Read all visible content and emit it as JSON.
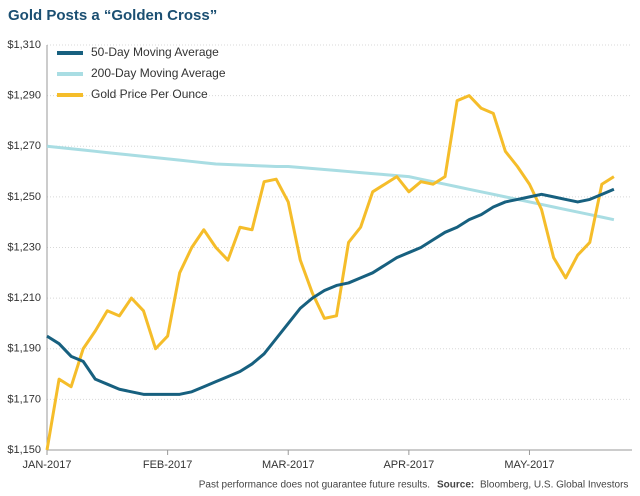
{
  "chart_data": {
    "type": "line",
    "title": "Gold Posts a “Golden Cross”",
    "categories": [
      "JAN-2017",
      null,
      null,
      null,
      null,
      null,
      null,
      null,
      null,
      null,
      "FEB-2017",
      null,
      null,
      null,
      null,
      null,
      null,
      null,
      null,
      null,
      "MAR-2017",
      null,
      null,
      null,
      null,
      null,
      null,
      null,
      null,
      null,
      "APR-2017",
      null,
      null,
      null,
      null,
      null,
      null,
      null,
      null,
      null,
      "MAY-2017",
      null,
      null,
      null,
      null,
      null,
      null,
      null
    ],
    "series": [
      {
        "name": "50-Day Moving Average",
        "color": "#17607f",
        "values": [
          1195,
          1192,
          1187,
          1185,
          1178,
          1176,
          1174,
          1173,
          1172,
          1172,
          1172,
          1172,
          1173,
          1175,
          1177,
          1179,
          1181,
          1184,
          1188,
          1194,
          1200,
          1206,
          1210,
          1213,
          1215,
          1216,
          1218,
          1220,
          1223,
          1226,
          1228,
          1230,
          1233,
          1236,
          1238,
          1241,
          1243,
          1246,
          1248,
          1249,
          1250,
          1251,
          1250,
          1249,
          1248,
          1249,
          1251,
          1253
        ]
      },
      {
        "name": "200-Day Moving Average",
        "color": "#a9dde3",
        "values": [
          1270,
          1269.5,
          1269,
          1268.5,
          1268,
          1267.5,
          1267,
          1266.5,
          1266,
          1265.5,
          1265,
          1264.5,
          1264,
          1263.5,
          1263,
          1262.8,
          1262.6,
          1262.4,
          1262.2,
          1262,
          1262,
          1261.6,
          1261.2,
          1260.8,
          1260.4,
          1260,
          1259.6,
          1259.2,
          1258.8,
          1258.4,
          1258,
          1257,
          1256,
          1255,
          1254,
          1253,
          1252,
          1251,
          1250,
          1249,
          1248,
          1247,
          1246,
          1245,
          1244,
          1243,
          1242,
          1241
        ]
      },
      {
        "name": "Gold Price Per Ounce",
        "color": "#f5bd2a",
        "values": [
          1150,
          1178,
          1175,
          1190,
          1197,
          1205,
          1203,
          1210,
          1205,
          1190,
          1195,
          1220,
          1230,
          1237,
          1230,
          1225,
          1238,
          1237,
          1256,
          1257,
          1248,
          1225,
          1212,
          1202,
          1203,
          1232,
          1238,
          1252,
          1255,
          1258,
          1252,
          1256,
          1255,
          1258,
          1288,
          1290,
          1285,
          1283,
          1268,
          1262,
          1255,
          1245,
          1226,
          1218,
          1227,
          1232,
          1255,
          1258
        ]
      }
    ],
    "ylim": [
      1150,
      1310
    ],
    "yticks": [
      {
        "value": 1150,
        "label": "$1,150"
      },
      {
        "value": 1170,
        "label": "$1,170"
      },
      {
        "value": 1190,
        "label": "$1,190"
      },
      {
        "value": 1210,
        "label": "$1,210"
      },
      {
        "value": 1230,
        "label": "$1,230"
      },
      {
        "value": 1250,
        "label": "$1,250"
      },
      {
        "value": 1270,
        "label": "$1,270"
      },
      {
        "value": 1290,
        "label": "$1,290"
      },
      {
        "value": 1310,
        "label": "$1,310"
      }
    ],
    "grid": true,
    "legend": "top-left",
    "note": "Past performance does not guarantee future results.",
    "source_label": "Source:",
    "source": "Bloomberg, U.S. Global Investors"
  }
}
